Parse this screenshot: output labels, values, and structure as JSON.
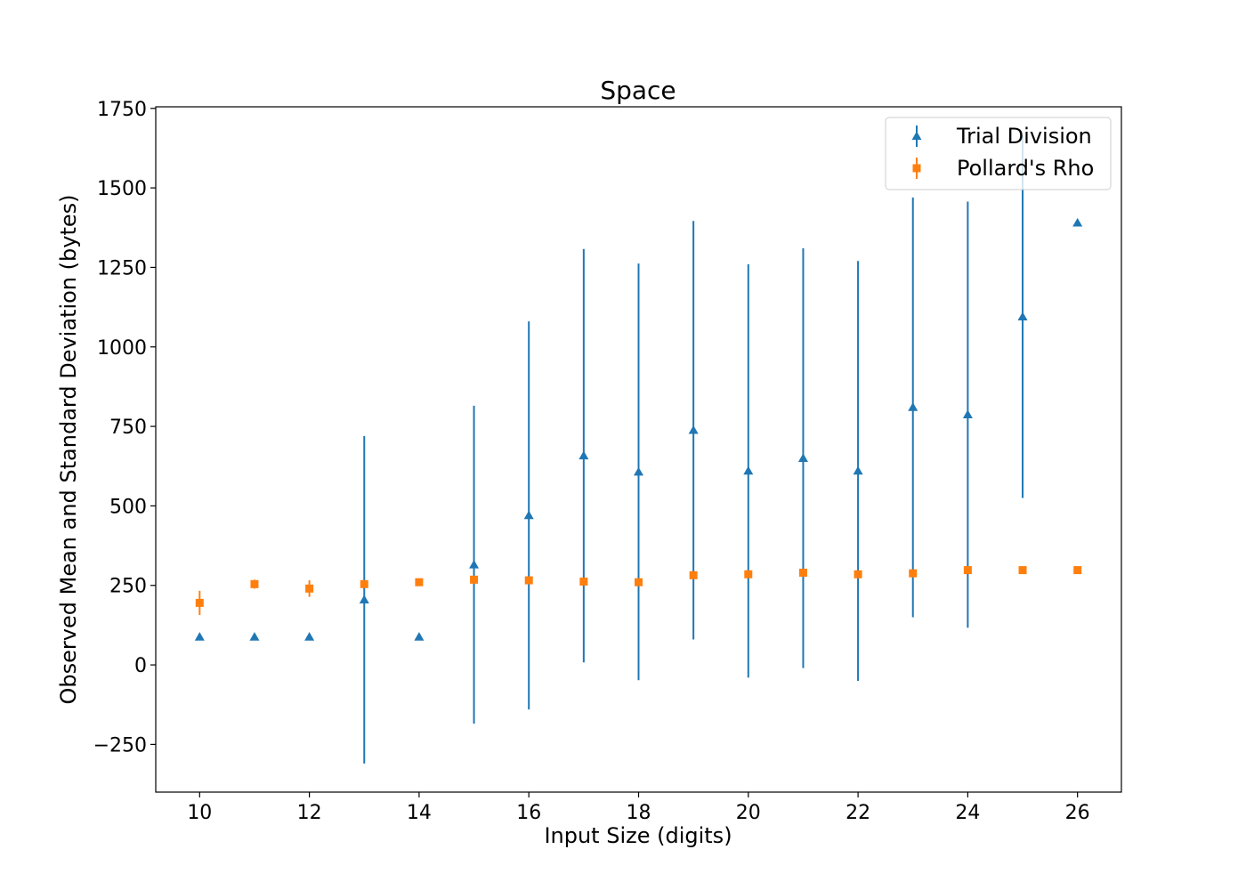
{
  "chart_data": {
    "type": "scatter",
    "title": "Space",
    "xlabel": "Input Size (digits)",
    "ylabel": "Observed Mean and Standard Deviation (bytes)",
    "xlim": [
      9.2,
      26.8
    ],
    "ylim": [
      -400,
      1755
    ],
    "x_ticks": [
      10,
      12,
      14,
      16,
      18,
      20,
      22,
      24,
      26
    ],
    "y_ticks": [
      -250,
      0,
      250,
      500,
      750,
      1000,
      1250,
      1500,
      1750
    ],
    "grid": false,
    "legend_position": "top-right",
    "series": [
      {
        "name": "Trial Division",
        "color": "#1f77b4",
        "marker": "triangle",
        "x": [
          10,
          11,
          12,
          13,
          14,
          15,
          16,
          17,
          18,
          19,
          20,
          21,
          22,
          23,
          24,
          25,
          26
        ],
        "y": [
          88,
          88,
          88,
          205,
          88,
          315,
          470,
          658,
          607,
          738,
          610,
          650,
          610,
          810,
          787,
          1095,
          1390
        ],
        "yerr": [
          0,
          0,
          0,
          515,
          0,
          500,
          610,
          650,
          655,
          658,
          650,
          660,
          660,
          660,
          670,
          570,
          0
        ]
      },
      {
        "name": "Pollard's Rho",
        "color": "#ff7f0e",
        "marker": "square",
        "x": [
          10,
          11,
          12,
          13,
          14,
          15,
          16,
          17,
          18,
          19,
          20,
          21,
          22,
          23,
          24,
          25,
          26
        ],
        "y": [
          195,
          254,
          240,
          254,
          260,
          268,
          266,
          262,
          260,
          282,
          285,
          290,
          285,
          288,
          298,
          298,
          298
        ],
        "yerr": [
          38,
          14,
          26,
          0,
          10,
          0,
          0,
          0,
          0,
          0,
          0,
          0,
          0,
          0,
          0,
          0,
          0
        ]
      }
    ]
  }
}
